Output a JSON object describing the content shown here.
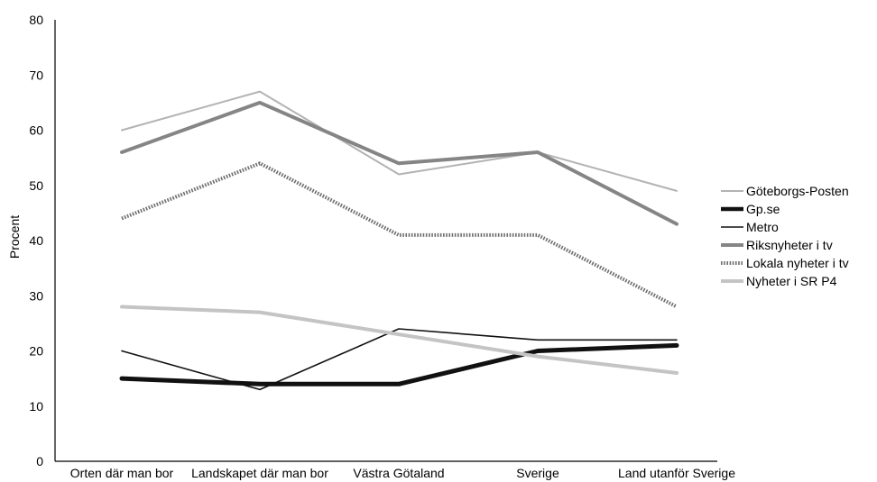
{
  "chart_data": {
    "type": "line",
    "title": "",
    "xlabel": "",
    "ylabel": "Procent",
    "ylim": [
      0,
      80
    ],
    "yticks": [
      0,
      10,
      20,
      30,
      40,
      50,
      60,
      70,
      80
    ],
    "categories": [
      "Orten där man bor",
      "Landskapet där man bor",
      "Västra Götaland",
      "Sverige",
      "Land utanför Sverige"
    ],
    "legend_position": "right",
    "series": [
      {
        "name": "Göteborgs-Posten",
        "values": [
          60,
          67,
          52,
          56,
          49
        ],
        "color": "#b3b3b3",
        "width": 2,
        "dashed": false
      },
      {
        "name": "Gp.se",
        "values": [
          15,
          14,
          14,
          20,
          21
        ],
        "color": "#111111",
        "width": 5,
        "dashed": false
      },
      {
        "name": "Metro",
        "values": [
          20,
          13,
          24,
          22,
          22
        ],
        "color": "#111111",
        "width": 1.6,
        "dashed": false
      },
      {
        "name": "Riksnyheter i tv",
        "values": [
          56,
          65,
          54,
          56,
          43
        ],
        "color": "#858585",
        "width": 4,
        "dashed": false
      },
      {
        "name": "Lokala nyheter i tv",
        "values": [
          44,
          54,
          41,
          41,
          28
        ],
        "color": "#6e6e6e",
        "width": 4,
        "dashed": true
      },
      {
        "name": "Nyheter i SR P4",
        "values": [
          28,
          27,
          23,
          19,
          16
        ],
        "color": "#c4c4c4",
        "width": 4,
        "dashed": false
      }
    ]
  }
}
